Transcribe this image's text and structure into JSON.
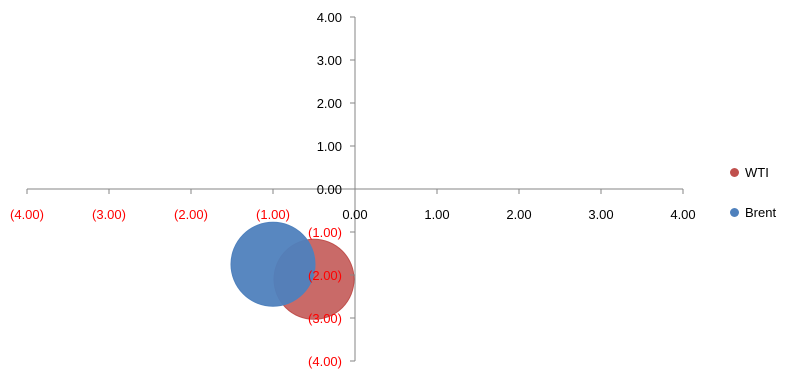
{
  "chart_data": {
    "type": "bubble",
    "xlim": [
      -4,
      4
    ],
    "ylim": [
      -4,
      4
    ],
    "x_ticks": [
      "(4.00)",
      "(3.00)",
      "(2.00)",
      "(1.00)",
      "0.00",
      "1.00",
      "2.00",
      "3.00",
      "4.00"
    ],
    "y_ticks": [
      "4.00",
      "3.00",
      "2.00",
      "1.00",
      "0.00",
      "(1.00)",
      "(2.00)",
      "(3.00)",
      "(4.00)"
    ],
    "tick_values": [
      -4,
      -3,
      -2,
      -1,
      0,
      1,
      2,
      3,
      4
    ],
    "y_tick_values": [
      4,
      3,
      2,
      1,
      0,
      -1,
      -2,
      -3,
      -4
    ],
    "negative_label_color": "#ff0000",
    "positive_label_color": "#000000",
    "legend_position": "right",
    "grid": false,
    "series": [
      {
        "name": "WTI",
        "color": "#c0504d",
        "points": [
          {
            "x": -0.5,
            "y": -2.1,
            "size": 1
          }
        ]
      },
      {
        "name": "Brent",
        "color": "#4f81bd",
        "points": [
          {
            "x": -1.0,
            "y": -1.75,
            "size": 1.05
          }
        ]
      }
    ]
  }
}
